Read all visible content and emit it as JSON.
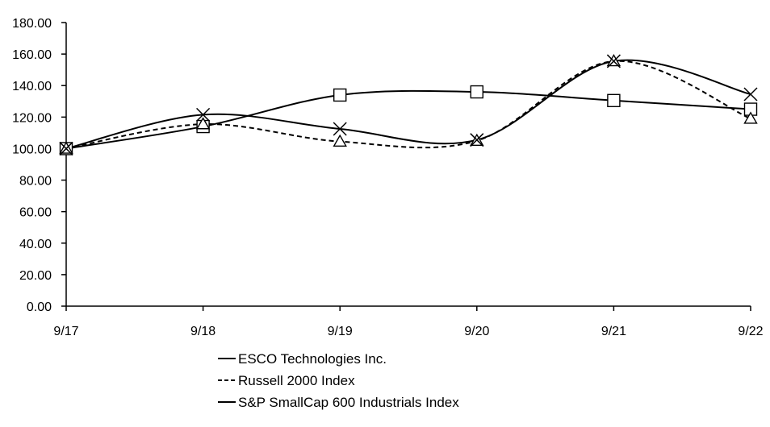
{
  "chart_data": {
    "type": "line",
    "title": "",
    "xlabel": "",
    "ylabel": "",
    "categories": [
      "9/17",
      "9/18",
      "9/19",
      "9/20",
      "9/21",
      "9/22"
    ],
    "ylim": [
      0,
      180
    ],
    "yticks": [
      "0.00",
      "20.00",
      "40.00",
      "60.00",
      "80.00",
      "100.00",
      "120.00",
      "140.00",
      "160.00",
      "180.00"
    ],
    "grid": false,
    "legend_position": "bottom",
    "series": [
      {
        "name": "ESCO Technologies Inc.",
        "values": [
          100,
          114,
          134,
          136,
          130.5,
          125
        ],
        "line_style": "solid",
        "marker": "square",
        "color": "#000000"
      },
      {
        "name": "Russell 2000 Index",
        "values": [
          100,
          115.5,
          104.5,
          105,
          155.5,
          119
        ],
        "line_style": "dashed",
        "marker": "triangle",
        "color": "#000000"
      },
      {
        "name": "S&P SmallCap 600 Industrials Index",
        "values": [
          100,
          121.5,
          112.5,
          105.5,
          155.5,
          134.5
        ],
        "line_style": "solid",
        "marker": "x",
        "color": "#000000"
      }
    ]
  }
}
